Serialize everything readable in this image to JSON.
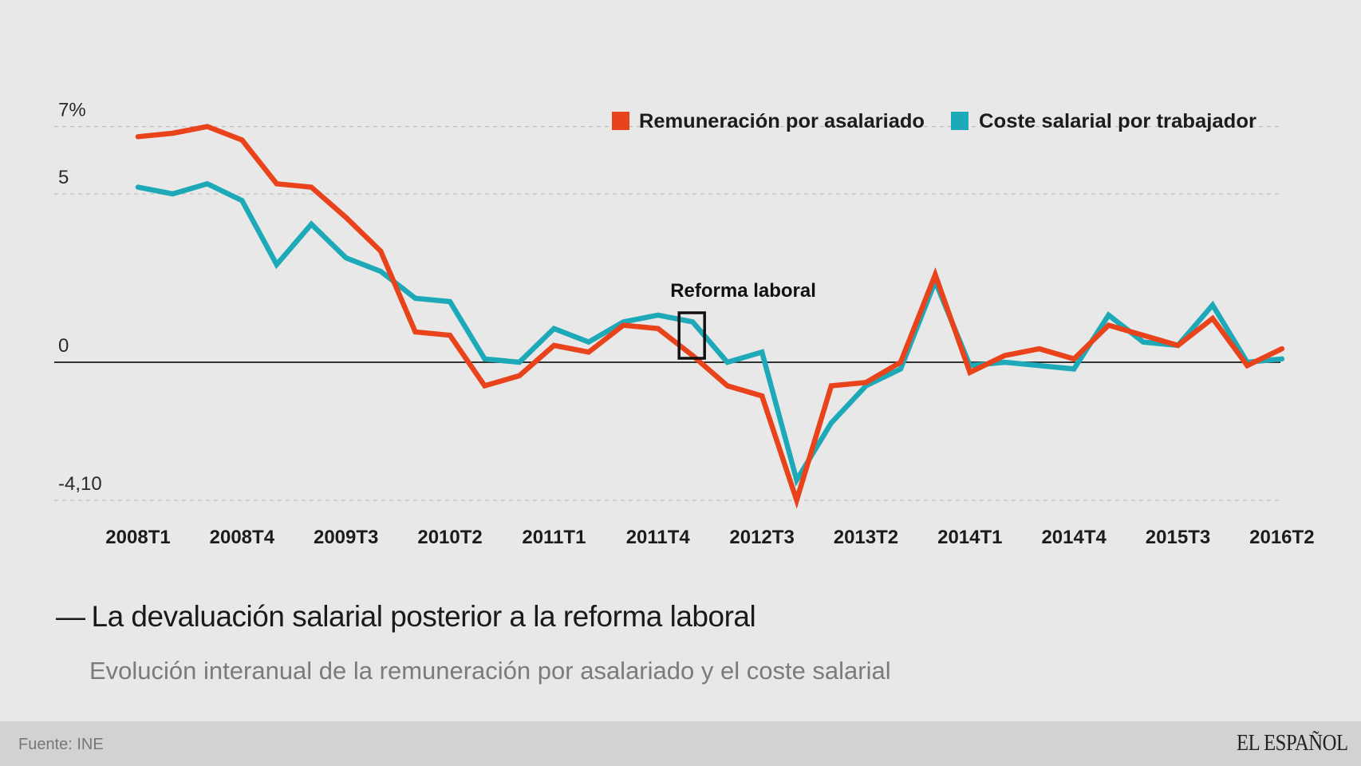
{
  "chart_data": {
    "type": "line",
    "title": "La devaluación salarial posterior a la reforma laboral",
    "subtitle": "Evolución interanual de la remuneración por asalariado y el coste salarial",
    "xlabel": "",
    "ylabel": "",
    "ylim": [
      -4.1,
      7
    ],
    "y_ticks": [
      {
        "value": 7,
        "label": "7%"
      },
      {
        "value": 5,
        "label": "5"
      },
      {
        "value": 0,
        "label": "0"
      },
      {
        "value": -4.1,
        "label": "-4,10"
      }
    ],
    "grid": true,
    "legend_position": "top-right",
    "x": [
      "2008T1",
      "2008T2",
      "2008T3",
      "2008T4",
      "2009T1",
      "2009T2",
      "2009T3",
      "2009T4",
      "2010T1",
      "2010T2",
      "2010T3",
      "2010T4",
      "2011T1",
      "2011T2",
      "2011T3",
      "2011T4",
      "2012T1",
      "2012T2",
      "2012T3",
      "2012T4",
      "2013T1",
      "2013T2",
      "2013T3",
      "2013T4",
      "2014T1",
      "2014T2",
      "2014T3",
      "2014T4",
      "2015T1",
      "2015T2",
      "2015T3",
      "2015T4",
      "2016T1",
      "2016T2"
    ],
    "x_tick_labels": [
      "2008T1",
      "2008T4",
      "2009T3",
      "2010T2",
      "2011T1",
      "2011T4",
      "2012T3",
      "2013T2",
      "2014T1",
      "2014T4",
      "2015T3",
      "2016T2"
    ],
    "series": [
      {
        "name": "Remuneración por asalariado",
        "color": "#e8431b",
        "values": [
          6.7,
          6.8,
          7.0,
          6.6,
          5.3,
          5.2,
          4.3,
          3.3,
          0.9,
          0.8,
          -0.7,
          -0.4,
          0.5,
          0.3,
          1.1,
          1.0,
          0.2,
          -0.7,
          -1.0,
          -4.1,
          -0.7,
          -0.6,
          0.0,
          2.6,
          -0.3,
          0.2,
          0.4,
          0.1,
          1.1,
          0.8,
          0.5,
          1.3,
          -0.1,
          0.4
        ]
      },
      {
        "name": "Coste salarial por trabajador",
        "color": "#1ea9b8",
        "values": [
          5.2,
          5.0,
          5.3,
          4.8,
          2.9,
          4.1,
          3.1,
          2.7,
          1.9,
          1.8,
          0.1,
          0.0,
          1.0,
          0.6,
          1.2,
          1.4,
          1.2,
          0.0,
          0.3,
          -3.5,
          -1.8,
          -0.7,
          -0.2,
          2.4,
          -0.1,
          0.0,
          -0.1,
          -0.2,
          1.4,
          0.6,
          0.5,
          1.7,
          0.0,
          0.1
        ]
      }
    ],
    "annotations": [
      {
        "text": "Reforma laboral",
        "x": "2012T1",
        "marker": "box"
      }
    ]
  },
  "footer": {
    "source": "Fuente: INE",
    "brand": "EL ESPAÑOL"
  },
  "colors": {
    "background": "#e8e8e8",
    "footer_background": "#d2d2d2",
    "remuneracion": "#e8431b",
    "coste": "#1ea9b8"
  }
}
